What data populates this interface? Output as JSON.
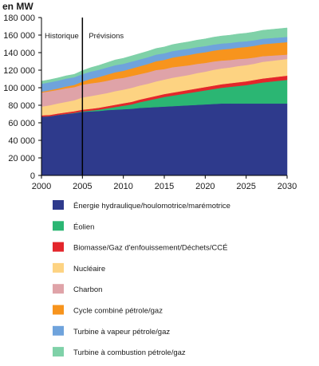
{
  "chart_data": {
    "type": "area",
    "stacked": true,
    "unit_label": "en MW",
    "x": [
      2000,
      2001,
      2002,
      2003,
      2004,
      2005,
      2006,
      2007,
      2008,
      2009,
      2010,
      2011,
      2012,
      2013,
      2014,
      2015,
      2016,
      2017,
      2018,
      2019,
      2020,
      2021,
      2022,
      2023,
      2024,
      2025,
      2026,
      2027,
      2028,
      2029,
      2030
    ],
    "xlim": [
      2000,
      2030
    ],
    "ylim": [
      0,
      180000
    ],
    "x_ticks": [
      "2000",
      "2005",
      "2010",
      "2015",
      "2020",
      "2025",
      "2030"
    ],
    "y_ticks": [
      "0",
      "20 000",
      "40 000",
      "60 000",
      "80 000",
      "100 000",
      "120 000",
      "140 000",
      "160 000",
      "180 000"
    ],
    "annotations": {
      "divider_x": 2005,
      "left_label": "Historique",
      "right_label": "Prévisions"
    },
    "grid": false,
    "legend_position": "bottom",
    "series": [
      {
        "name": "Énergie hydraulique/houlomotrice/marémotrice",
        "color": "#2e3a8c",
        "values": [
          67000,
          67500,
          69000,
          70000,
          71000,
          72500,
          73000,
          73500,
          74500,
          75000,
          75500,
          76000,
          77000,
          77500,
          78000,
          78500,
          79000,
          79500,
          80000,
          80500,
          81000,
          81500,
          82000,
          82000,
          82000,
          82000,
          82000,
          82000,
          82000,
          82000,
          82000
        ]
      },
      {
        "name": "Éolien",
        "color": "#2bb673",
        "values": [
          0,
          0,
          0,
          200,
          400,
          600,
          1000,
          1500,
          2000,
          3000,
          4000,
          5000,
          6500,
          8000,
          9500,
          11000,
          12000,
          13000,
          14000,
          15000,
          16000,
          17000,
          18000,
          19000,
          20000,
          21000,
          22500,
          24000,
          25000,
          26000,
          27000
        ]
      },
      {
        "name": "Biomasse/Gaz d'enfouissement/Déchets/CCÉ",
        "color": "#e3262b",
        "values": [
          1500,
          1500,
          1600,
          1700,
          1800,
          1900,
          2000,
          2200,
          2400,
          2600,
          2800,
          2900,
          3000,
          3100,
          3200,
          3300,
          3400,
          3500,
          3600,
          3700,
          3800,
          3900,
          4000,
          4100,
          4200,
          4300,
          4400,
          4500,
          4600,
          4700,
          4800
        ]
      },
      {
        "name": "Nucléaire",
        "color": "#fdd382",
        "values": [
          10000,
          11000,
          11500,
          12000,
          12500,
          14000,
          14500,
          15000,
          15000,
          15500,
          15500,
          16000,
          16000,
          16000,
          16500,
          16500,
          17000,
          17000,
          17000,
          17500,
          17500,
          18000,
          18000,
          18000,
          18500,
          18500,
          18500,
          19000,
          19000,
          19000,
          19000
        ]
      },
      {
        "name": "Charbon",
        "color": "#dfa3a8",
        "values": [
          16000,
          16000,
          15500,
          15500,
          15000,
          14500,
          14500,
          14000,
          14000,
          14000,
          13500,
          13500,
          13000,
          13000,
          13000,
          12000,
          12000,
          11500,
          11000,
          10500,
          10000,
          9500,
          9000,
          8500,
          8000,
          7500,
          7000,
          6500,
          6000,
          5500,
          5000
        ]
      },
      {
        "name": "Cycle combiné pétrole/gaz",
        "color": "#f7941d",
        "values": [
          1000,
          1200,
          1500,
          2000,
          2500,
          3500,
          5000,
          6000,
          7000,
          7500,
          8000,
          8500,
          9000,
          9500,
          10000,
          10500,
          11000,
          11500,
          11800,
          12000,
          12200,
          12400,
          12600,
          12800,
          13000,
          13200,
          13400,
          13600,
          13800,
          14000,
          14200
        ]
      },
      {
        "name": "Turbine à vapeur pétrole/gaz",
        "color": "#6fa3dc",
        "values": [
          9000,
          9000,
          9000,
          9000,
          8800,
          8500,
          8400,
          8300,
          8200,
          8100,
          8000,
          7900,
          7800,
          7700,
          7600,
          7500,
          7400,
          7300,
          7200,
          7100,
          7000,
          6900,
          6800,
          6700,
          6600,
          6500,
          6400,
          6300,
          6200,
          6100,
          6000
        ]
      },
      {
        "name": "Turbine à combustion pétrole/gaz",
        "color": "#7fd1a8",
        "values": [
          3000,
          3000,
          3100,
          3200,
          3300,
          4000,
          4500,
          5000,
          5500,
          6000,
          6300,
          6500,
          6700,
          6900,
          7000,
          7200,
          7400,
          7600,
          7800,
          8000,
          8200,
          8400,
          8600,
          8800,
          9000,
          9200,
          9400,
          9600,
          9800,
          10000,
          10200
        ]
      }
    ]
  }
}
